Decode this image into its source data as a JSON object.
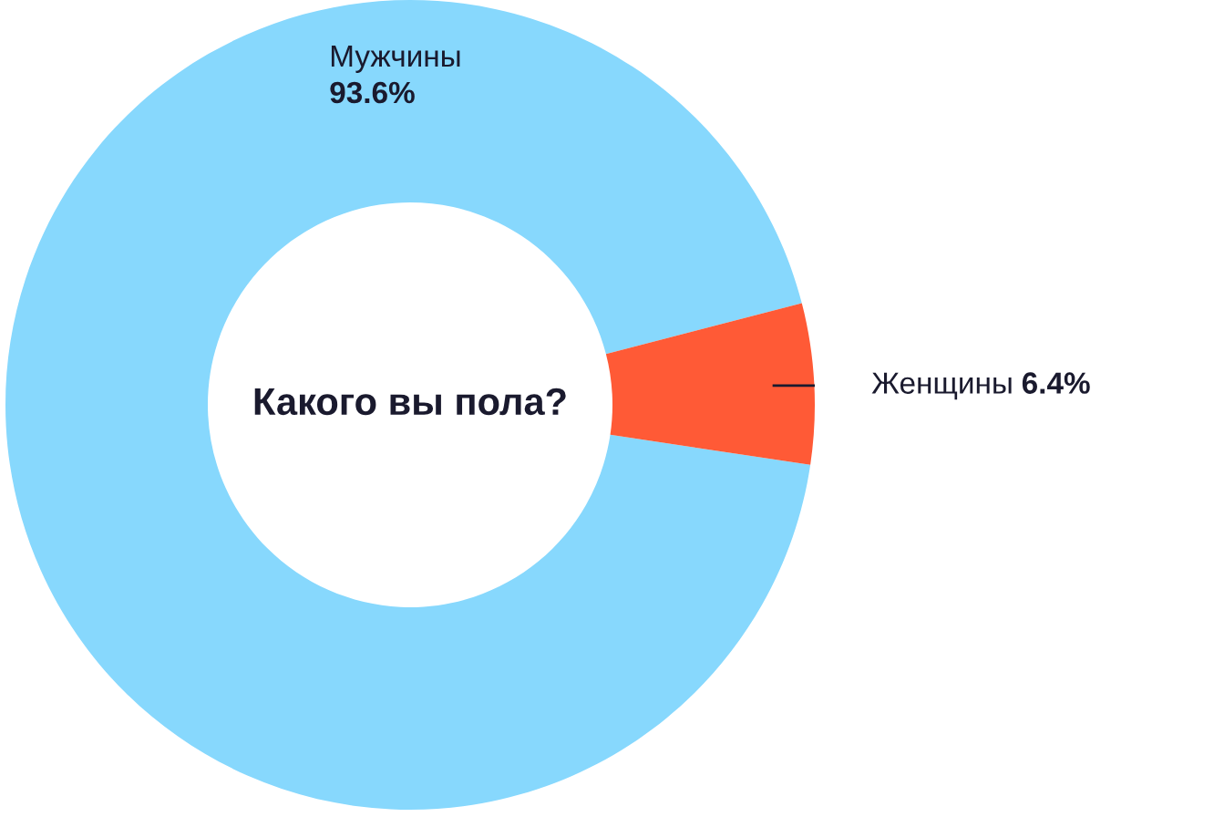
{
  "chart_data": {
    "type": "donut",
    "title": "Какого вы пола?",
    "categories": [
      "Мужчины",
      "Женщины"
    ],
    "values": [
      93.6,
      6.4
    ],
    "colors": [
      "#87d8fd",
      "#ff5a36"
    ],
    "value_labels": [
      "93.6%",
      "6.4%"
    ],
    "legend": false
  }
}
